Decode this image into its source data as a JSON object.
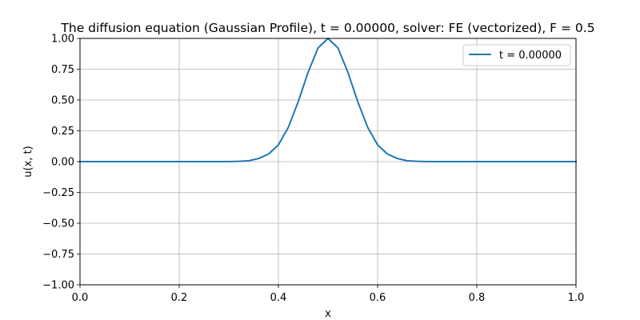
{
  "chart_data": {
    "type": "line",
    "title": "The diffusion equation (Gaussian Profile), t = 0.00000, solver: FE (vectorized), F = 0.5",
    "xlabel": "x",
    "ylabel": "u(x, t)",
    "xlim": [
      0.0,
      1.0
    ],
    "ylim": [
      -1.0,
      1.0
    ],
    "xticks": [
      0.0,
      0.2,
      0.4,
      0.6,
      0.8,
      1.0
    ],
    "xtick_labels": [
      "0.0",
      "0.2",
      "0.4",
      "0.6",
      "0.8",
      "1.0"
    ],
    "yticks": [
      -1.0,
      -0.75,
      -0.5,
      -0.25,
      0.0,
      0.25,
      0.5,
      0.75,
      1.0
    ],
    "ytick_labels": [
      "−1.00",
      "−0.75",
      "−0.50",
      "−0.25",
      "0.00",
      "0.25",
      "0.50",
      "0.75",
      "1.00"
    ],
    "grid": true,
    "legend_position": "top-right",
    "series": [
      {
        "name": "t = 0.00000",
        "color": "#1f77b4",
        "x": [
          0.0,
          0.02,
          0.04,
          0.06,
          0.08,
          0.1,
          0.12,
          0.14,
          0.16,
          0.18,
          0.2,
          0.22,
          0.24,
          0.26,
          0.28,
          0.3,
          0.32,
          0.34,
          0.36,
          0.38,
          0.4,
          0.42,
          0.44,
          0.46,
          0.48,
          0.5,
          0.52,
          0.54,
          0.56,
          0.58,
          0.6,
          0.62,
          0.64,
          0.66,
          0.68,
          0.7,
          0.72,
          0.74,
          0.76,
          0.78,
          0.8,
          0.82,
          0.84,
          0.86,
          0.88,
          0.9,
          0.92,
          0.94,
          0.96,
          0.98,
          1.0
        ],
        "y": [
          0.0,
          0.0,
          0.0,
          0.0,
          0.0,
          0.0,
          0.0,
          0.0,
          0.0,
          0.0,
          0.0,
          0.0,
          0.0,
          0.0,
          0.0,
          0.0004,
          0.0022,
          0.0067,
          0.0247,
          0.0608,
          0.1353,
          0.278,
          0.4868,
          0.7261,
          0.9231,
          1.0,
          0.9231,
          0.7261,
          0.4868,
          0.278,
          0.1353,
          0.0608,
          0.0247,
          0.0067,
          0.0022,
          0.0004,
          0.0,
          0.0,
          0.0,
          0.0,
          0.0,
          0.0,
          0.0,
          0.0,
          0.0,
          0.0,
          0.0,
          0.0,
          0.0,
          0.0,
          0.0
        ]
      }
    ]
  }
}
